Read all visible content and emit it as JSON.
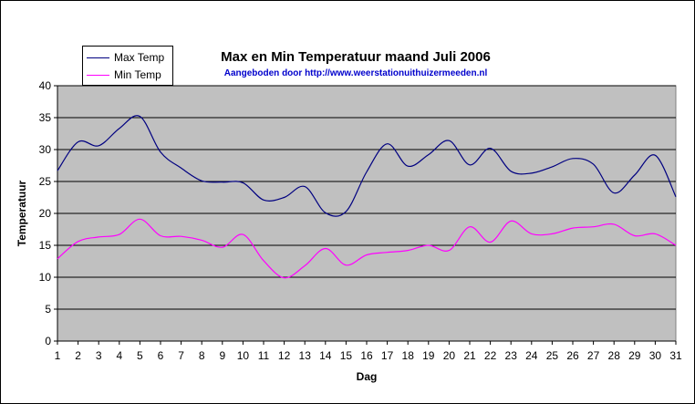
{
  "chart_data": {
    "type": "line",
    "title": "Max en Min Temperatuur maand Juli 2006",
    "subtitle": "Aangeboden door http://www.weerstationuithuizermeeden.nl",
    "xlabel": "Dag",
    "ylabel": "Temperatuur",
    "x": [
      1,
      2,
      3,
      4,
      5,
      6,
      7,
      8,
      9,
      10,
      11,
      12,
      13,
      14,
      15,
      16,
      17,
      18,
      19,
      20,
      21,
      22,
      23,
      24,
      25,
      26,
      27,
      28,
      29,
      30,
      31
    ],
    "ylim": [
      0,
      40
    ],
    "yticks": [
      0,
      5,
      10,
      15,
      20,
      25,
      30,
      35,
      40
    ],
    "grid": true,
    "legend_position": "top-left",
    "series": [
      {
        "name": "Max Temp",
        "color": "#000080",
        "values": [
          26.7,
          31.2,
          30.6,
          33.3,
          35.2,
          29.6,
          27.1,
          25.1,
          24.9,
          24.8,
          22.1,
          22.5,
          24.2,
          20.1,
          20.3,
          26.5,
          30.9,
          27.4,
          29.2,
          31.4,
          27.6,
          30.2,
          26.6,
          26.3,
          27.3,
          28.6,
          27.7,
          23.2,
          26.0,
          29.1,
          22.6
        ]
      },
      {
        "name": "Min Temp",
        "color": "#ff00ff",
        "values": [
          12.9,
          15.6,
          16.3,
          16.7,
          19.1,
          16.5,
          16.4,
          15.8,
          14.7,
          16.7,
          12.6,
          9.9,
          11.8,
          14.5,
          11.9,
          13.5,
          13.9,
          14.2,
          15.0,
          14.2,
          17.9,
          15.5,
          18.8,
          16.8,
          16.8,
          17.7,
          17.9,
          18.3,
          16.5,
          16.8,
          15.0
        ]
      }
    ]
  },
  "colors": {
    "plot_background": "#c0c0c0",
    "gridline": "#000000",
    "subtitle_text": "#0000cc"
  }
}
